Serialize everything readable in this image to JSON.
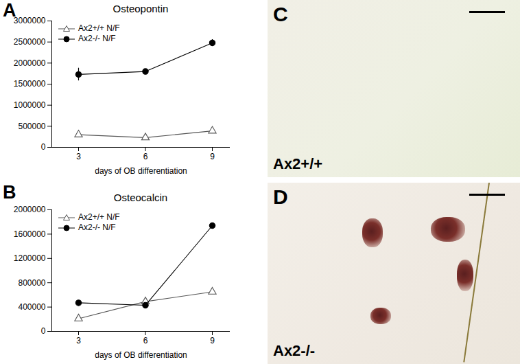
{
  "chart_data": [
    {
      "type": "line",
      "panel": "A",
      "title": "Osteopontin",
      "x_label": "days of OB differentiation",
      "x": [
        3,
        6,
        9
      ],
      "xlim": [
        1.8,
        9.8
      ],
      "xticks": [
        3,
        6,
        9
      ],
      "ylim": [
        0,
        3000000
      ],
      "yticks": [
        0,
        500000,
        1000000,
        1500000,
        2000000,
        2500000,
        3000000
      ],
      "legend": "top-left",
      "series": [
        {
          "name": "Ax2+/+ N/F",
          "color": "#555555",
          "marker": "triangle-open",
          "values": [
            300000,
            230000,
            390000
          ],
          "errors": [
            30000,
            20000,
            40000
          ]
        },
        {
          "name": "Ax2-/- N/F",
          "color": "#000000",
          "marker": "circle",
          "values": [
            1730000,
            1800000,
            2480000
          ],
          "errors": [
            150000,
            30000,
            80000
          ]
        }
      ]
    },
    {
      "type": "line",
      "panel": "B",
      "title": "Osteocalcin",
      "x_label": "days of OB differentiation",
      "x": [
        3,
        6,
        9
      ],
      "xlim": [
        1.8,
        9.8
      ],
      "xticks": [
        3,
        6,
        9
      ],
      "ylim": [
        0,
        2000000
      ],
      "yticks": [
        0,
        400000,
        800000,
        1200000,
        1600000,
        2000000
      ],
      "legend": "top-left",
      "series": [
        {
          "name": "Ax2+/+ N/F",
          "color": "#555555",
          "marker": "triangle-open",
          "values": [
            210000,
            490000,
            650000
          ],
          "errors": [
            15000,
            15000,
            20000
          ]
        },
        {
          "name": "Ax2-/- N/F",
          "color": "#000000",
          "marker": "circle",
          "values": [
            470000,
            430000,
            1740000
          ],
          "errors": [
            20000,
            20000,
            40000
          ]
        }
      ]
    }
  ],
  "image_panels": [
    {
      "panel": "C",
      "label": "Ax2+/+"
    },
    {
      "panel": "D",
      "label": "Ax2-/-"
    }
  ]
}
